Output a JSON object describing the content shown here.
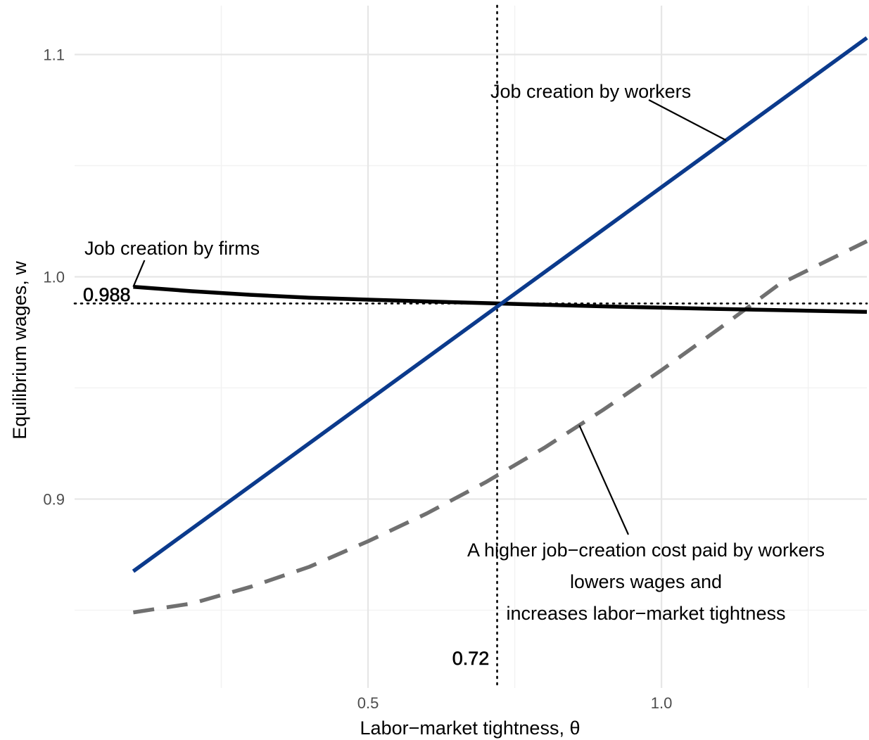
{
  "chart_data": {
    "type": "line",
    "xlabel": "Labor−market tightness, θ",
    "ylabel": "Equilibrium wages, w",
    "xlim": [
      0.0,
      1.35
    ],
    "ylim": [
      0.815,
      1.122
    ],
    "x_ticks": [
      {
        "value": 0.5,
        "label": "0.5"
      },
      {
        "value": 1.0,
        "label": "1.0"
      }
    ],
    "x_minor_ticks": [
      0.25,
      0.75,
      1.25
    ],
    "y_ticks": [
      {
        "value": 0.9,
        "label": "0.9"
      },
      {
        "value": 1.0,
        "label": "1.0"
      },
      {
        "value": 1.1,
        "label": "1.1"
      }
    ],
    "y_minor_ticks": [
      0.85,
      0.95,
      1.05
    ],
    "grid": true,
    "series": [
      {
        "key": "firms",
        "color": "#000000",
        "style": "solid",
        "x": [
          0.1,
          0.2,
          0.3,
          0.4,
          0.5,
          0.6,
          0.72,
          0.8,
          0.9,
          1.0,
          1.1,
          1.2,
          1.35
        ],
        "y": [
          0.9955,
          0.9935,
          0.9919,
          0.9906,
          0.9897,
          0.9889,
          0.988,
          0.9874,
          0.9867,
          0.9861,
          0.9855,
          0.985,
          0.9842
        ]
      },
      {
        "key": "workers",
        "color": "#0b3a8c",
        "style": "solid",
        "x": [
          0.1,
          1.35
        ],
        "y": [
          0.8675,
          1.1075
        ]
      },
      {
        "key": "workers_higher_cost",
        "color": "#707070",
        "style": "dashed",
        "x": [
          0.1,
          0.2,
          0.3,
          0.4,
          0.5,
          0.6,
          0.7,
          0.8,
          0.9,
          1.0,
          1.1,
          1.2,
          1.35
        ],
        "y": [
          0.849,
          0.853,
          0.8605,
          0.8695,
          0.881,
          0.8935,
          0.9075,
          0.923,
          0.94,
          0.958,
          0.977,
          0.9965,
          1.016
        ]
      }
    ],
    "reference_lines": {
      "vertical": {
        "x": 0.72,
        "label": "0.72"
      },
      "horizontal": {
        "y": 0.988,
        "label": "0.988"
      }
    },
    "annotations": [
      {
        "key": "firms",
        "lines": [
          "Job creation by firms"
        ]
      },
      {
        "key": "workers",
        "lines": [
          "Job creation by workers"
        ]
      },
      {
        "key": "higher_cost",
        "lines": [
          "A higher job−creation cost paid by workers",
          "lowers wages and",
          "increases labor−market tightness"
        ]
      }
    ]
  }
}
